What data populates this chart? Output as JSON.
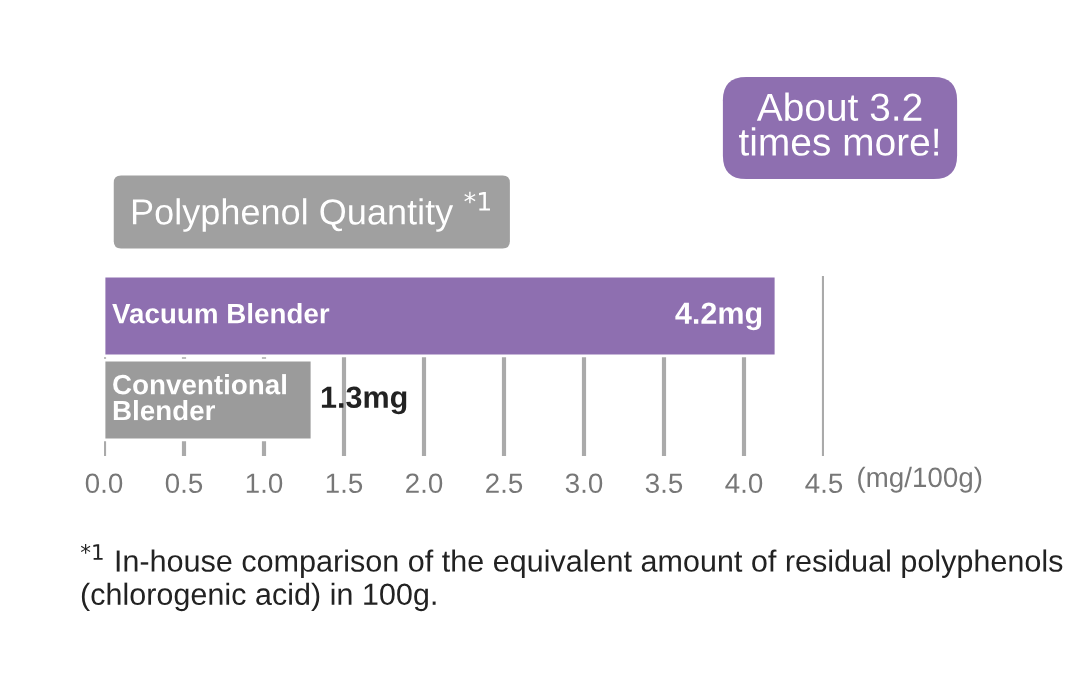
{
  "chart_data": {
    "type": "bar",
    "orientation": "horizontal",
    "title": "Polyphenol Quantity $^{*1}$",
    "categories": [
      "Vacuum Blender",
      "Conventional Blender"
    ],
    "values": [
      4.2,
      1.3
    ],
    "colors": [
      "#8e6fb0",
      "#9b9b9b"
    ],
    "value_labels": [
      "4.2mg",
      "1.3mg"
    ],
    "xlabel": "(mg/100g)",
    "xlim": [
      0,
      4.5
    ],
    "xticks": [
      {
        "value": 0,
        "label": "0.0"
      },
      0.5,
      {
        "value": 1,
        "label": "1.0"
      },
      1.5,
      {
        "value": 2,
        "label": "2.0"
      },
      2.5,
      {
        "value": 3,
        "label": "3.0"
      },
      3.5,
      {
        "value": 4,
        "label": "4.0"
      },
      4.5
    ],
    "grid": "x",
    "annotations": [
      "About 3.2 times more!",
      "$^{*1}$ In-house comparison of the equivalent amount of residual polyphenols (chlorogenic acid) in 100g."
    ]
  }
}
